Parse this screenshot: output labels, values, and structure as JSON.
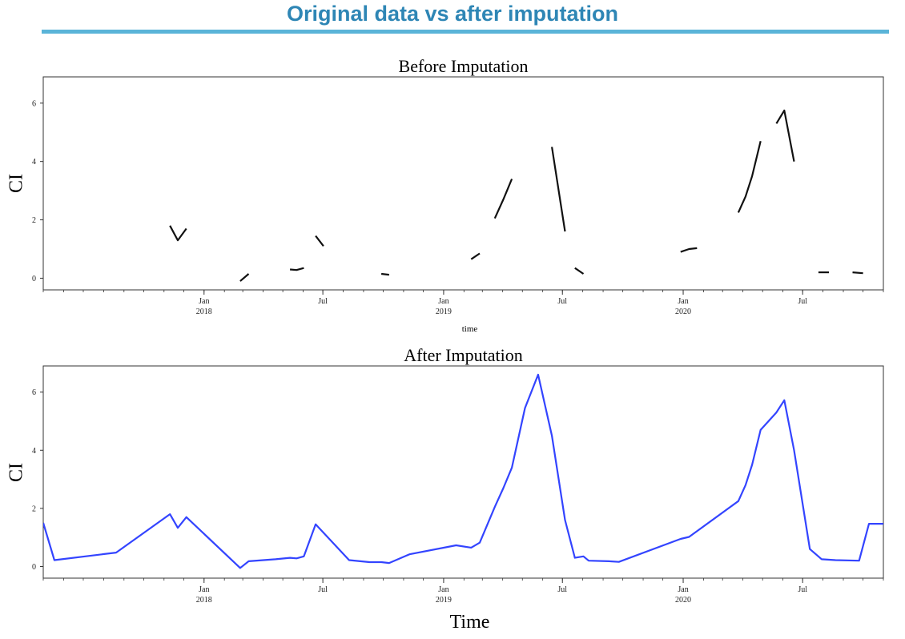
{
  "page": {
    "title": "Original data vs after imputation"
  },
  "colors": {
    "title": "#2e86b5",
    "rule": "#5ab4d8",
    "before_line": "#111111",
    "after_line": "#3344ff"
  },
  "chart_data": [
    {
      "type": "line",
      "title": "Before Imputation",
      "xlabel": "time",
      "ylabel": "CI",
      "x_tick_labels": [
        {
          "date": "2018-01-01",
          "month": "Jan",
          "year": "2018"
        },
        {
          "date": "2018-07-01",
          "month": "Jul",
          "year": ""
        },
        {
          "date": "2019-01-01",
          "month": "Jan",
          "year": "2019"
        },
        {
          "date": "2019-07-01",
          "month": "Jul",
          "year": ""
        },
        {
          "date": "2020-01-01",
          "month": "Jan",
          "year": "2020"
        },
        {
          "date": "2020-07-01",
          "month": "Jul",
          "year": ""
        }
      ],
      "y_ticks": [
        0,
        2,
        4,
        6
      ],
      "xlim": [
        "2017-05-01",
        "2020-11-01"
      ],
      "ylim": [
        -0.4,
        6.9
      ],
      "grid": false,
      "series": [
        {
          "segments": [
            [
              [
                "2017-11-10",
                1.8
              ],
              [
                "2017-11-22",
                1.3
              ],
              [
                "2017-12-05",
                1.7
              ]
            ],
            [
              [
                "2018-02-25",
                -0.1
              ],
              [
                "2018-03-10",
                0.15
              ]
            ],
            [
              [
                "2018-05-12",
                0.3
              ],
              [
                "2018-05-22",
                0.28
              ],
              [
                "2018-06-02",
                0.35
              ]
            ],
            [
              [
                "2018-06-20",
                1.45
              ],
              [
                "2018-07-02",
                1.1
              ]
            ],
            [
              [
                "2018-09-28",
                0.15
              ],
              [
                "2018-10-10",
                0.12
              ]
            ],
            [
              [
                "2019-02-12",
                0.65
              ],
              [
                "2019-02-25",
                0.85
              ]
            ],
            [
              [
                "2019-03-20",
                2.05
              ],
              [
                "2019-04-02",
                2.7
              ],
              [
                "2019-04-15",
                3.4
              ]
            ],
            [
              [
                "2019-06-15",
                4.5
              ],
              [
                "2019-07-05",
                1.6
              ]
            ],
            [
              [
                "2019-07-20",
                0.35
              ],
              [
                "2019-08-02",
                0.15
              ]
            ],
            [
              [
                "2019-12-28",
                0.9
              ],
              [
                "2020-01-10",
                1.0
              ],
              [
                "2020-01-22",
                1.03
              ]
            ],
            [
              [
                "2020-03-25",
                2.25
              ],
              [
                "2020-04-05",
                2.8
              ],
              [
                "2020-04-15",
                3.5
              ],
              [
                "2020-04-28",
                4.7
              ]
            ],
            [
              [
                "2020-05-22",
                5.3
              ],
              [
                "2020-06-03",
                5.75
              ],
              [
                "2020-06-18",
                4.0
              ]
            ],
            [
              [
                "2020-07-25",
                0.2
              ],
              [
                "2020-08-10",
                0.2
              ]
            ],
            [
              [
                "2020-09-15",
                0.2
              ],
              [
                "2020-10-01",
                0.17
              ]
            ]
          ]
        }
      ]
    },
    {
      "type": "line",
      "title": "After Imputation",
      "xlabel": "Time",
      "ylabel": "CI",
      "x_tick_labels": [
        {
          "date": "2018-01-01",
          "month": "Jan",
          "year": "2018"
        },
        {
          "date": "2018-07-01",
          "month": "Jul",
          "year": ""
        },
        {
          "date": "2019-01-01",
          "month": "Jan",
          "year": "2019"
        },
        {
          "date": "2019-07-01",
          "month": "Jul",
          "year": ""
        },
        {
          "date": "2020-01-01",
          "month": "Jan",
          "year": "2020"
        },
        {
          "date": "2020-07-01",
          "month": "Jul",
          "year": ""
        }
      ],
      "y_ticks": [
        0,
        2,
        4,
        6
      ],
      "xlim": [
        "2017-05-01",
        "2020-11-01"
      ],
      "ylim": [
        -0.4,
        6.9
      ],
      "grid": false,
      "series": [
        {
          "points": [
            [
              "2017-05-01",
              1.5
            ],
            [
              "2017-05-18",
              0.22
            ],
            [
              "2017-08-20",
              0.48
            ],
            [
              "2017-11-10",
              1.8
            ],
            [
              "2017-11-22",
              1.33
            ],
            [
              "2017-12-05",
              1.7
            ],
            [
              "2018-02-25",
              -0.05
            ],
            [
              "2018-03-10",
              0.18
            ],
            [
              "2018-04-20",
              0.25
            ],
            [
              "2018-05-12",
              0.3
            ],
            [
              "2018-05-22",
              0.28
            ],
            [
              "2018-06-02",
              0.35
            ],
            [
              "2018-06-20",
              1.45
            ],
            [
              "2018-08-10",
              0.22
            ],
            [
              "2018-09-10",
              0.15
            ],
            [
              "2018-09-28",
              0.15
            ],
            [
              "2018-10-10",
              0.12
            ],
            [
              "2018-11-10",
              0.42
            ],
            [
              "2019-01-20",
              0.73
            ],
            [
              "2019-02-12",
              0.65
            ],
            [
              "2019-02-25",
              0.82
            ],
            [
              "2019-03-20",
              2.05
            ],
            [
              "2019-04-02",
              2.7
            ],
            [
              "2019-04-15",
              3.4
            ],
            [
              "2019-05-05",
              5.45
            ],
            [
              "2019-05-25",
              6.6
            ],
            [
              "2019-06-15",
              4.5
            ],
            [
              "2019-07-05",
              1.6
            ],
            [
              "2019-07-20",
              0.3
            ],
            [
              "2019-08-02",
              0.35
            ],
            [
              "2019-08-10",
              0.2
            ],
            [
              "2019-09-10",
              0.18
            ],
            [
              "2019-09-25",
              0.16
            ],
            [
              "2019-12-28",
              0.95
            ],
            [
              "2020-01-10",
              1.02
            ],
            [
              "2020-03-25",
              2.25
            ],
            [
              "2020-04-05",
              2.8
            ],
            [
              "2020-04-15",
              3.5
            ],
            [
              "2020-04-28",
              4.7
            ],
            [
              "2020-05-22",
              5.3
            ],
            [
              "2020-06-03",
              5.72
            ],
            [
              "2020-06-18",
              4.0
            ],
            [
              "2020-07-12",
              0.6
            ],
            [
              "2020-07-30",
              0.25
            ],
            [
              "2020-08-20",
              0.22
            ],
            [
              "2020-09-25",
              0.2
            ],
            [
              "2020-10-10",
              1.47
            ],
            [
              "2020-11-01",
              1.47
            ]
          ]
        }
      ]
    }
  ]
}
